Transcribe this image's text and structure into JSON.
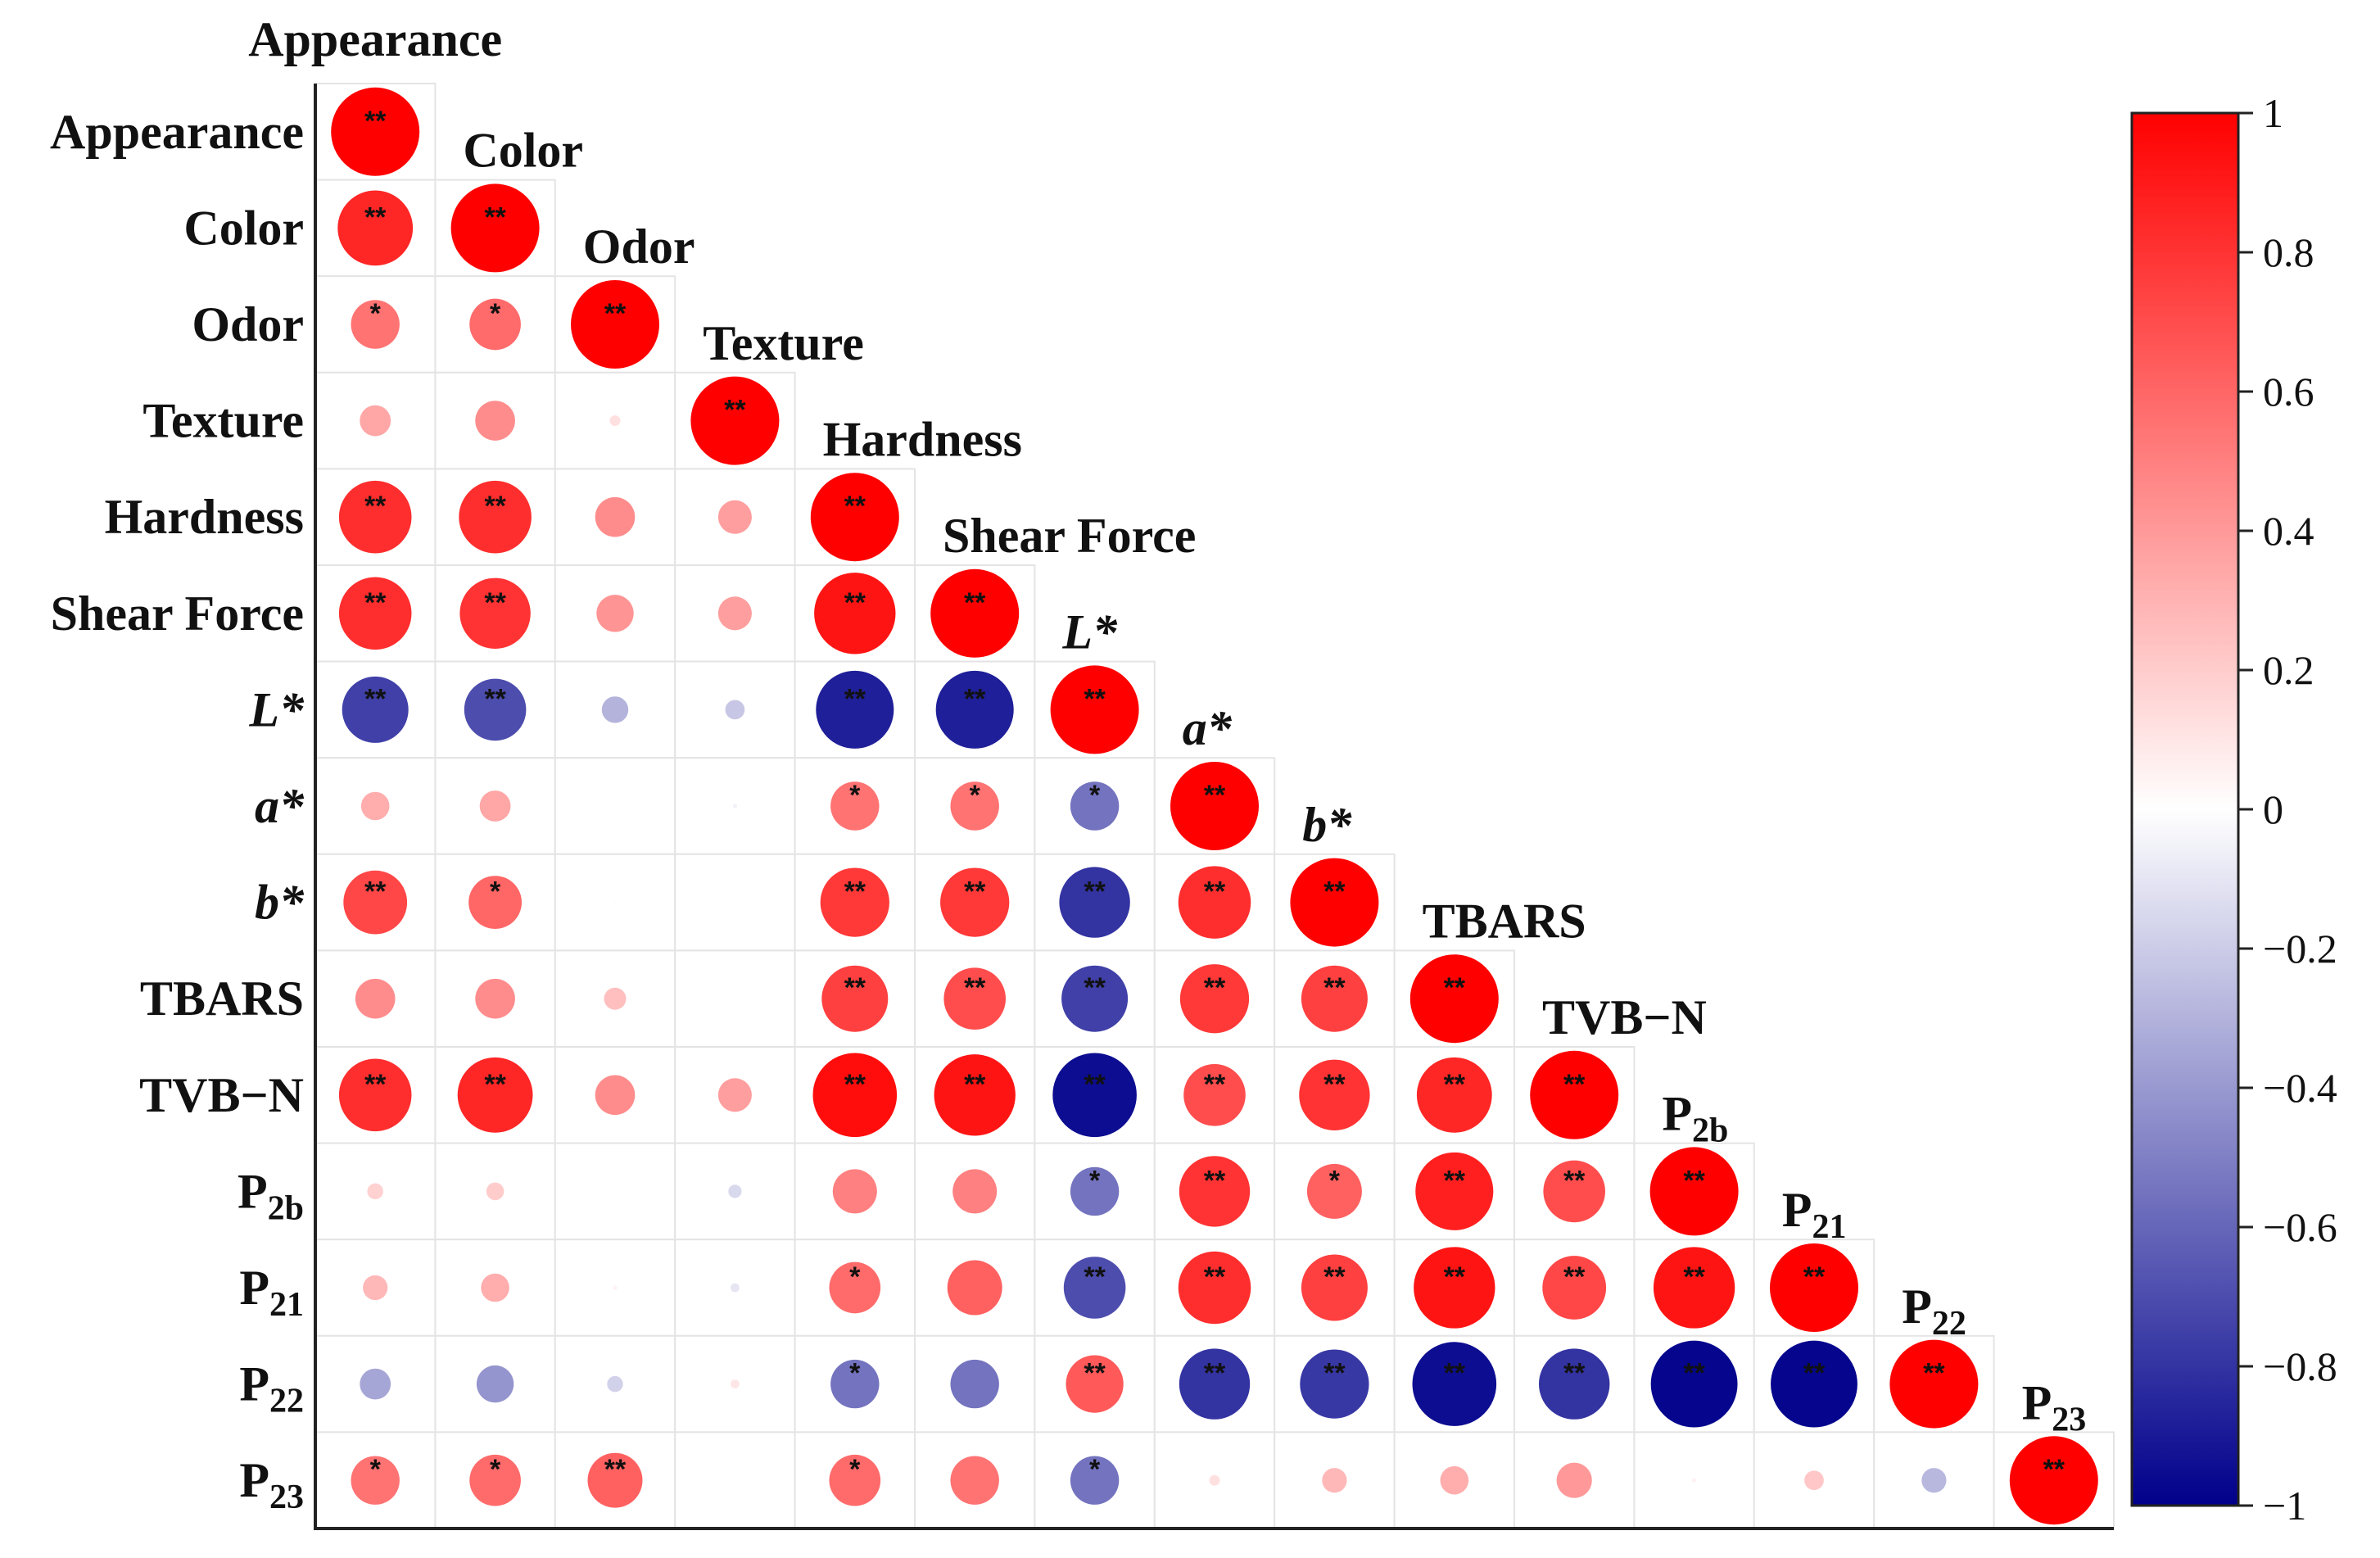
{
  "chart_data": {
    "type": "heatmap",
    "variables": [
      {
        "label": "Appearance",
        "italic": false
      },
      {
        "label": "Color",
        "italic": false
      },
      {
        "label": "Odor",
        "italic": false
      },
      {
        "label": "Texture",
        "italic": false
      },
      {
        "label": "Hardness",
        "italic": false
      },
      {
        "label": "Shear Force",
        "italic": false
      },
      {
        "label": "L*",
        "italic": true
      },
      {
        "label": "a*",
        "italic": true
      },
      {
        "label": "b*",
        "italic": true
      },
      {
        "label": "TBARS",
        "italic": false
      },
      {
        "label": "TVB−N",
        "italic": false
      },
      {
        "label": "P",
        "sub": "2b",
        "italic": false
      },
      {
        "label": "P",
        "sub": "21",
        "italic": false
      },
      {
        "label": "P",
        "sub": "22",
        "italic": false
      },
      {
        "label": "P",
        "sub": "23",
        "italic": false
      }
    ],
    "values": [
      [
        1.0
      ],
      [
        0.85,
        1.0
      ],
      [
        0.55,
        0.58,
        1.0
      ],
      [
        0.35,
        0.45,
        0.12,
        1.0
      ],
      [
        0.82,
        0.82,
        0.45,
        0.38,
        1.0
      ],
      [
        0.82,
        0.8,
        0.42,
        0.38,
        0.92,
        1.0
      ],
      [
        -0.75,
        -0.7,
        -0.3,
        -0.22,
        -0.88,
        -0.88,
        1.0
      ],
      [
        0.32,
        0.35,
        0.0,
        -0.05,
        0.55,
        0.55,
        -0.55,
        1.0
      ],
      [
        0.72,
        0.6,
        0.02,
        0.02,
        0.78,
        0.78,
        -0.8,
        0.82,
        1.0
      ],
      [
        0.45,
        0.45,
        0.25,
        0.02,
        0.75,
        0.7,
        -0.75,
        0.78,
        0.75,
        1.0
      ],
      [
        0.82,
        0.85,
        0.45,
        0.38,
        0.95,
        0.92,
        -0.95,
        0.7,
        0.8,
        0.85,
        1.0
      ],
      [
        0.18,
        0.2,
        0.0,
        -0.15,
        0.5,
        0.5,
        -0.55,
        0.8,
        0.62,
        0.88,
        0.7,
        1.0
      ],
      [
        0.28,
        0.32,
        0.05,
        -0.1,
        0.58,
        0.62,
        -0.7,
        0.82,
        0.75,
        0.92,
        0.72,
        0.92,
        1.0
      ],
      [
        -0.35,
        -0.42,
        -0.18,
        0.1,
        -0.55,
        -0.55,
        0.65,
        -0.8,
        -0.78,
        -0.95,
        -0.8,
        -0.98,
        -0.98,
        1.0
      ],
      [
        0.55,
        0.58,
        0.62,
        0.0,
        0.58,
        0.55,
        -0.55,
        0.12,
        0.28,
        0.32,
        0.4,
        0.05,
        0.22,
        -0.28,
        1.0
      ]
    ],
    "significance": [
      [
        "**"
      ],
      [
        "**",
        "**"
      ],
      [
        "*",
        "*",
        "**"
      ],
      [
        "",
        "",
        "",
        "**"
      ],
      [
        "**",
        "**",
        "",
        "",
        "**"
      ],
      [
        "**",
        "**",
        "",
        "",
        "**",
        "**"
      ],
      [
        "**",
        "**",
        "",
        "",
        "**",
        "**",
        "**"
      ],
      [
        "",
        "",
        "",
        "",
        "*",
        "*",
        "*",
        "**"
      ],
      [
        "**",
        "*",
        "",
        "",
        "**",
        "**",
        "**",
        "**",
        "**"
      ],
      [
        "",
        "",
        "",
        "",
        "**",
        "**",
        "**",
        "**",
        "**",
        "**"
      ],
      [
        "**",
        "**",
        "",
        "",
        "**",
        "**",
        "**",
        "**",
        "**",
        "**",
        "**"
      ],
      [
        "",
        "",
        "",
        "",
        "",
        "",
        "*",
        "**",
        "*",
        "**",
        "**",
        "**"
      ],
      [
        "",
        "",
        "",
        "",
        "*",
        "",
        "**",
        "**",
        "**",
        "**",
        "**",
        "**",
        "**"
      ],
      [
        "",
        "",
        "",
        "",
        "*",
        "",
        "**",
        "**",
        "**",
        "**",
        "**",
        "**",
        "**",
        "**"
      ],
      [
        "*",
        "*",
        "**",
        "",
        "*",
        "",
        "*",
        "",
        "",
        "",
        "",
        "",
        "",
        "",
        "**"
      ]
    ],
    "colorbar": {
      "range": [
        -1,
        1
      ],
      "ticks": [
        "1",
        "0.8",
        "0.6",
        "0.4",
        "0.2",
        "0",
        "−0.2",
        "−0.4",
        "−0.6",
        "−0.8",
        "−1"
      ],
      "tick_values": [
        1,
        0.8,
        0.6,
        0.4,
        0.2,
        0,
        -0.2,
        -0.4,
        -0.6,
        -0.8,
        -1
      ],
      "colors": {
        "positive": "#ff0000",
        "zero": "#ffffff",
        "negative": "#00008b"
      }
    }
  }
}
